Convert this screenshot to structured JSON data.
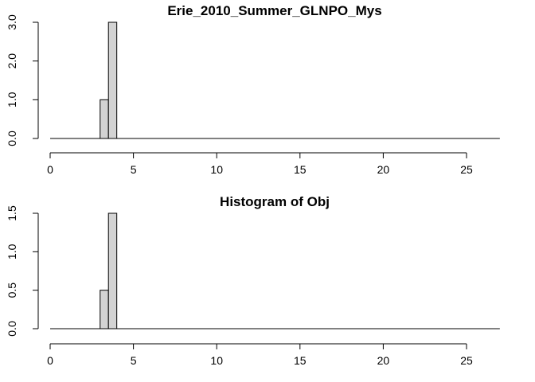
{
  "chart_data": [
    {
      "type": "bar",
      "title": "Erie_2010_Summer_GLNPO_Mys",
      "xlabel": "",
      "ylabel": "",
      "xlim": [
        0,
        27
      ],
      "ylim": [
        0,
        3
      ],
      "x_ticks": [
        "0",
        "5",
        "10",
        "15",
        "20",
        "25"
      ],
      "y_ticks": [
        "0.0",
        "1.0",
        "2.0",
        "3.0"
      ],
      "bins": [
        {
          "start": 3,
          "end": 3.5,
          "value": 1
        },
        {
          "start": 3.5,
          "end": 4,
          "value": 3
        }
      ],
      "baseline_line": [
        0,
        27
      ]
    },
    {
      "type": "bar",
      "title": "Histogram of Obj",
      "xlabel": "",
      "ylabel": "",
      "xlim": [
        0,
        27
      ],
      "ylim": [
        0,
        1.5
      ],
      "x_ticks": [
        "0",
        "5",
        "10",
        "15",
        "20",
        "25"
      ],
      "y_ticks": [
        "0.0",
        "0.5",
        "1.0",
        "1.5"
      ],
      "bins": [
        {
          "start": 3,
          "end": 3.5,
          "value": 0.5
        },
        {
          "start": 3.5,
          "end": 4,
          "value": 1.5
        }
      ],
      "baseline_line": [
        0,
        27
      ]
    }
  ]
}
